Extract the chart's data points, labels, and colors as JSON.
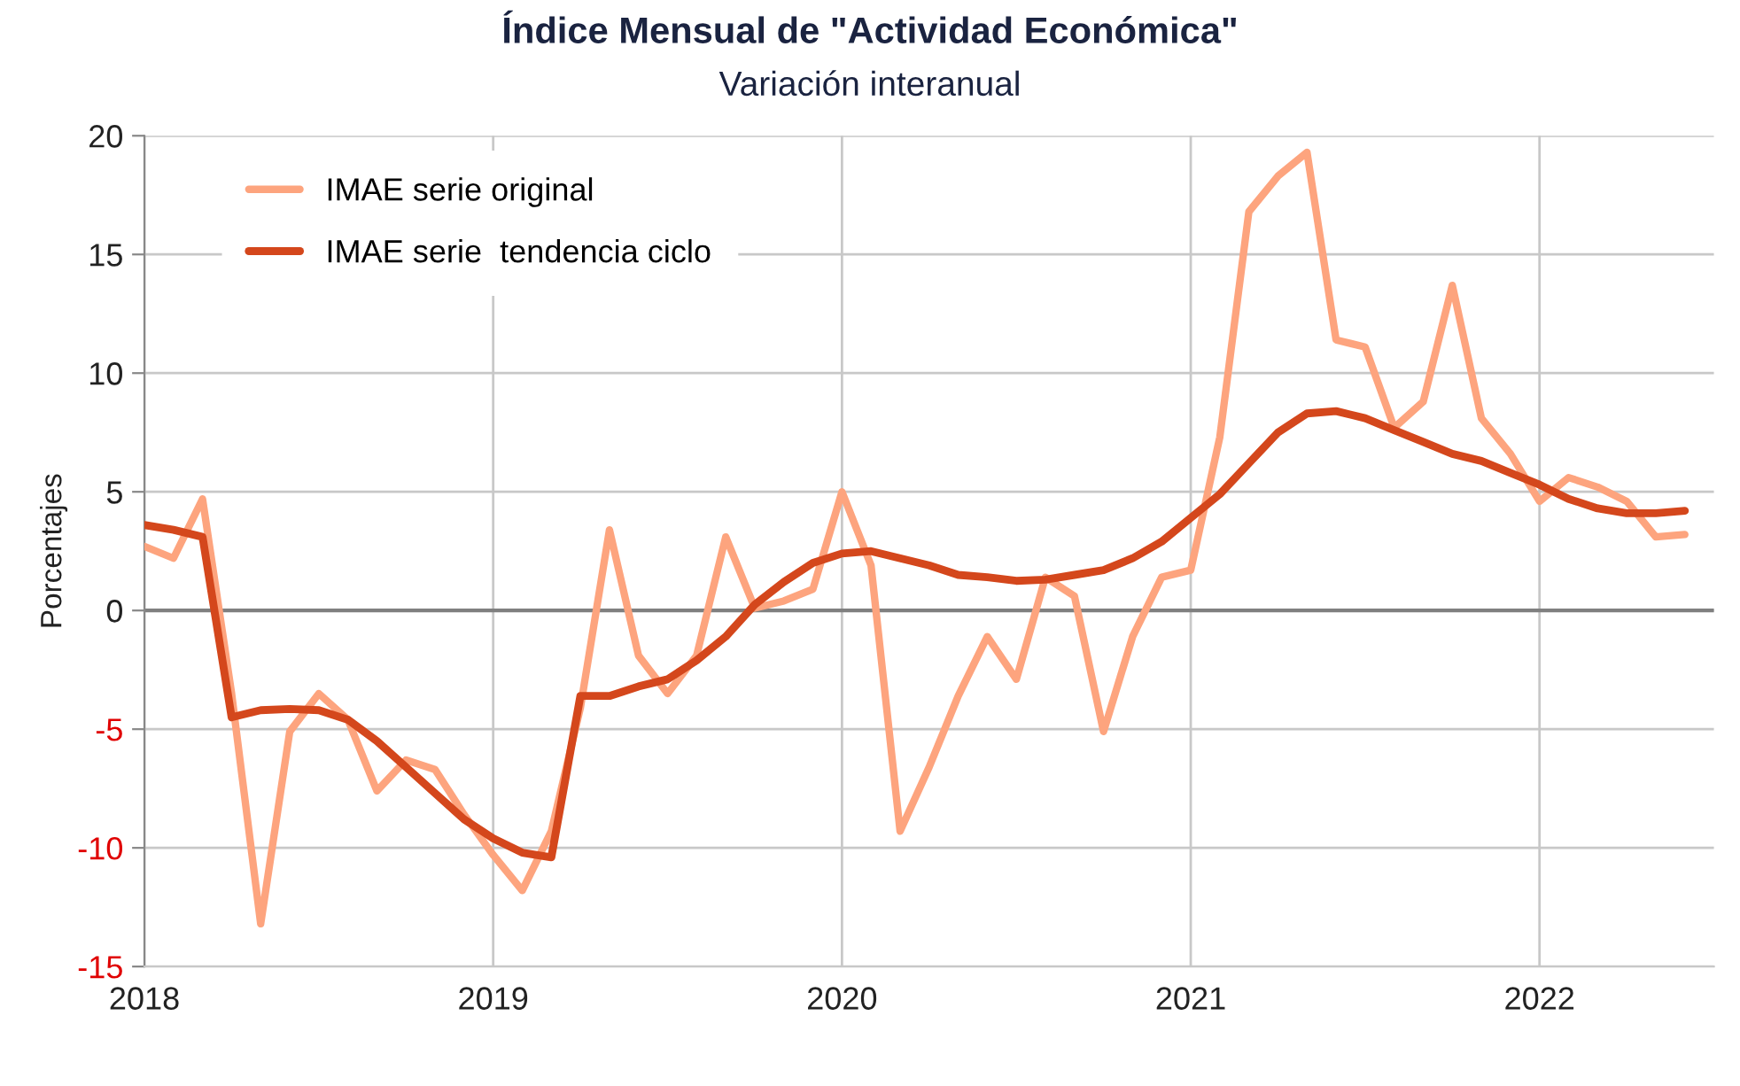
{
  "chart_data": {
    "type": "line",
    "title": "Índice Mensual de \"Actividad Económica\"",
    "subtitle": "Variación interanual",
    "ylabel": "Porcentajes",
    "x": [
      "2018-01",
      "2018-02",
      "2018-03",
      "2018-04",
      "2018-05",
      "2018-06",
      "2018-07",
      "2018-08",
      "2018-09",
      "2018-10",
      "2018-11",
      "2018-12",
      "2019-01",
      "2019-02",
      "2019-03",
      "2019-04",
      "2019-05",
      "2019-06",
      "2019-07",
      "2019-08",
      "2019-09",
      "2019-10",
      "2019-11",
      "2019-12",
      "2020-01",
      "2020-02",
      "2020-03",
      "2020-04",
      "2020-05",
      "2020-06",
      "2020-07",
      "2020-08",
      "2020-09",
      "2020-10",
      "2020-11",
      "2020-12",
      "2021-01",
      "2021-02",
      "2021-03",
      "2021-04",
      "2021-05",
      "2021-06",
      "2021-07",
      "2021-08",
      "2021-09",
      "2021-10",
      "2021-11",
      "2021-12",
      "2022-01",
      "2022-02",
      "2022-03",
      "2022-04",
      "2022-05",
      "2022-06"
    ],
    "series": [
      {
        "name": "IMAE serie original",
        "color": "#fda47e",
        "values": [
          2.7,
          2.2,
          4.7,
          -3.5,
          -13.2,
          -5.1,
          -3.5,
          -4.6,
          -7.6,
          -6.3,
          -6.7,
          -8.6,
          -10.3,
          -11.8,
          -9.3,
          -4.1,
          3.4,
          -1.9,
          -3.5,
          -1.9,
          3.1,
          0.1,
          0.4,
          0.9,
          5.0,
          1.9,
          -9.3,
          -6.6,
          -3.6,
          -1.1,
          -2.9,
          1.4,
          0.6,
          -5.1,
          -1.1,
          1.4,
          1.7,
          7.3,
          16.8,
          18.3,
          19.3,
          11.4,
          11.1,
          7.7,
          8.8,
          13.7,
          8.1,
          6.6,
          4.6,
          5.6,
          5.2,
          4.6,
          3.1,
          3.2
        ]
      },
      {
        "name": "IMAE serie  tendencia ciclo",
        "color": "#d4471c",
        "values": [
          3.6,
          3.4,
          3.1,
          -4.5,
          -4.2,
          -4.15,
          -4.2,
          -4.6,
          -5.5,
          -6.6,
          -7.7,
          -8.8,
          -9.6,
          -10.2,
          -10.4,
          -3.6,
          -3.6,
          -3.2,
          -2.9,
          -2.1,
          -1.1,
          0.25,
          1.2,
          2.0,
          2.4,
          2.5,
          2.2,
          1.9,
          1.5,
          1.4,
          1.25,
          1.3,
          1.5,
          1.7,
          2.2,
          2.9,
          3.9,
          4.9,
          6.2,
          7.5,
          8.3,
          8.4,
          8.1,
          7.6,
          7.1,
          6.6,
          6.3,
          5.8,
          5.3,
          4.7,
          4.3,
          4.1,
          4.1,
          4.2
        ]
      }
    ],
    "xlim": [
      "2018-01",
      "2022-07"
    ],
    "xticks": [
      {
        "value": "2018",
        "label": "2018"
      },
      {
        "value": "2019",
        "label": "2019"
      },
      {
        "value": "2020",
        "label": "2020"
      },
      {
        "value": "2021",
        "label": "2021"
      },
      {
        "value": "2022",
        "label": "2022"
      }
    ],
    "ylim": [
      -15,
      20
    ],
    "yticks": [
      {
        "value": -15,
        "label": "-15"
      },
      {
        "value": -10,
        "label": "-10"
      },
      {
        "value": -5,
        "label": "-5"
      },
      0,
      5,
      10,
      15,
      20
    ],
    "ref_lines": [
      {
        "axis": "y",
        "value": 0,
        "label": null,
        "color": "#808080"
      }
    ],
    "grid": true,
    "legend": "top left",
    "marker": "none",
    "line_style": "solid"
  }
}
